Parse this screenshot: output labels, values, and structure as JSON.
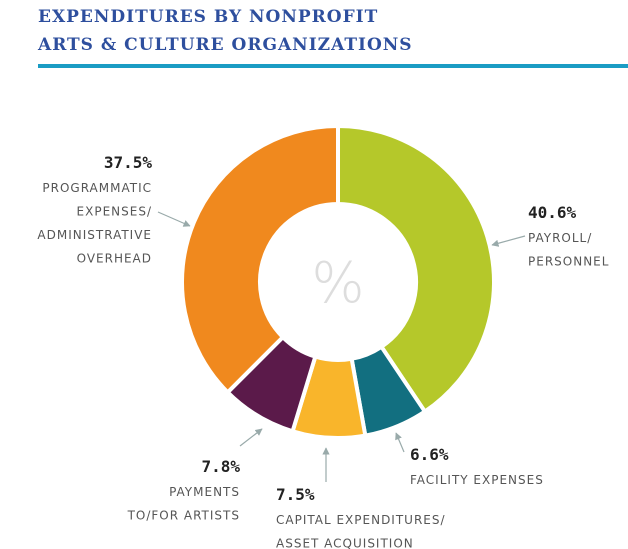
{
  "chart_data": {
    "type": "donut",
    "title": [
      "EXPENDITURES BY NONPROFIT",
      "ARTS & CULTURE ORGANIZATIONS"
    ],
    "center_label": "%",
    "categories": [
      [
        "PAYROLL/",
        "PERSONNEL"
      ],
      [
        "FACILITY EXPENSES"
      ],
      [
        "CAPITAL EXPENDITURES/",
        "ASSET ACQUISITION"
      ],
      [
        "PAYMENTS",
        "TO/FOR ARTISTS"
      ],
      [
        "PROGRAMMATIC",
        "EXPENSES/",
        "ADMINISTRATIVE",
        "OVERHEAD"
      ]
    ],
    "values": [
      40.6,
      6.6,
      7.5,
      7.8,
      37.5
    ],
    "value_labels": [
      "40.6%",
      "6.6%",
      "7.5%",
      "7.8%",
      "37.5%"
    ],
    "colors": [
      "#b5c82a",
      "#126f80",
      "#f9b52b",
      "#5b1a4a",
      "#f0891e"
    ]
  }
}
